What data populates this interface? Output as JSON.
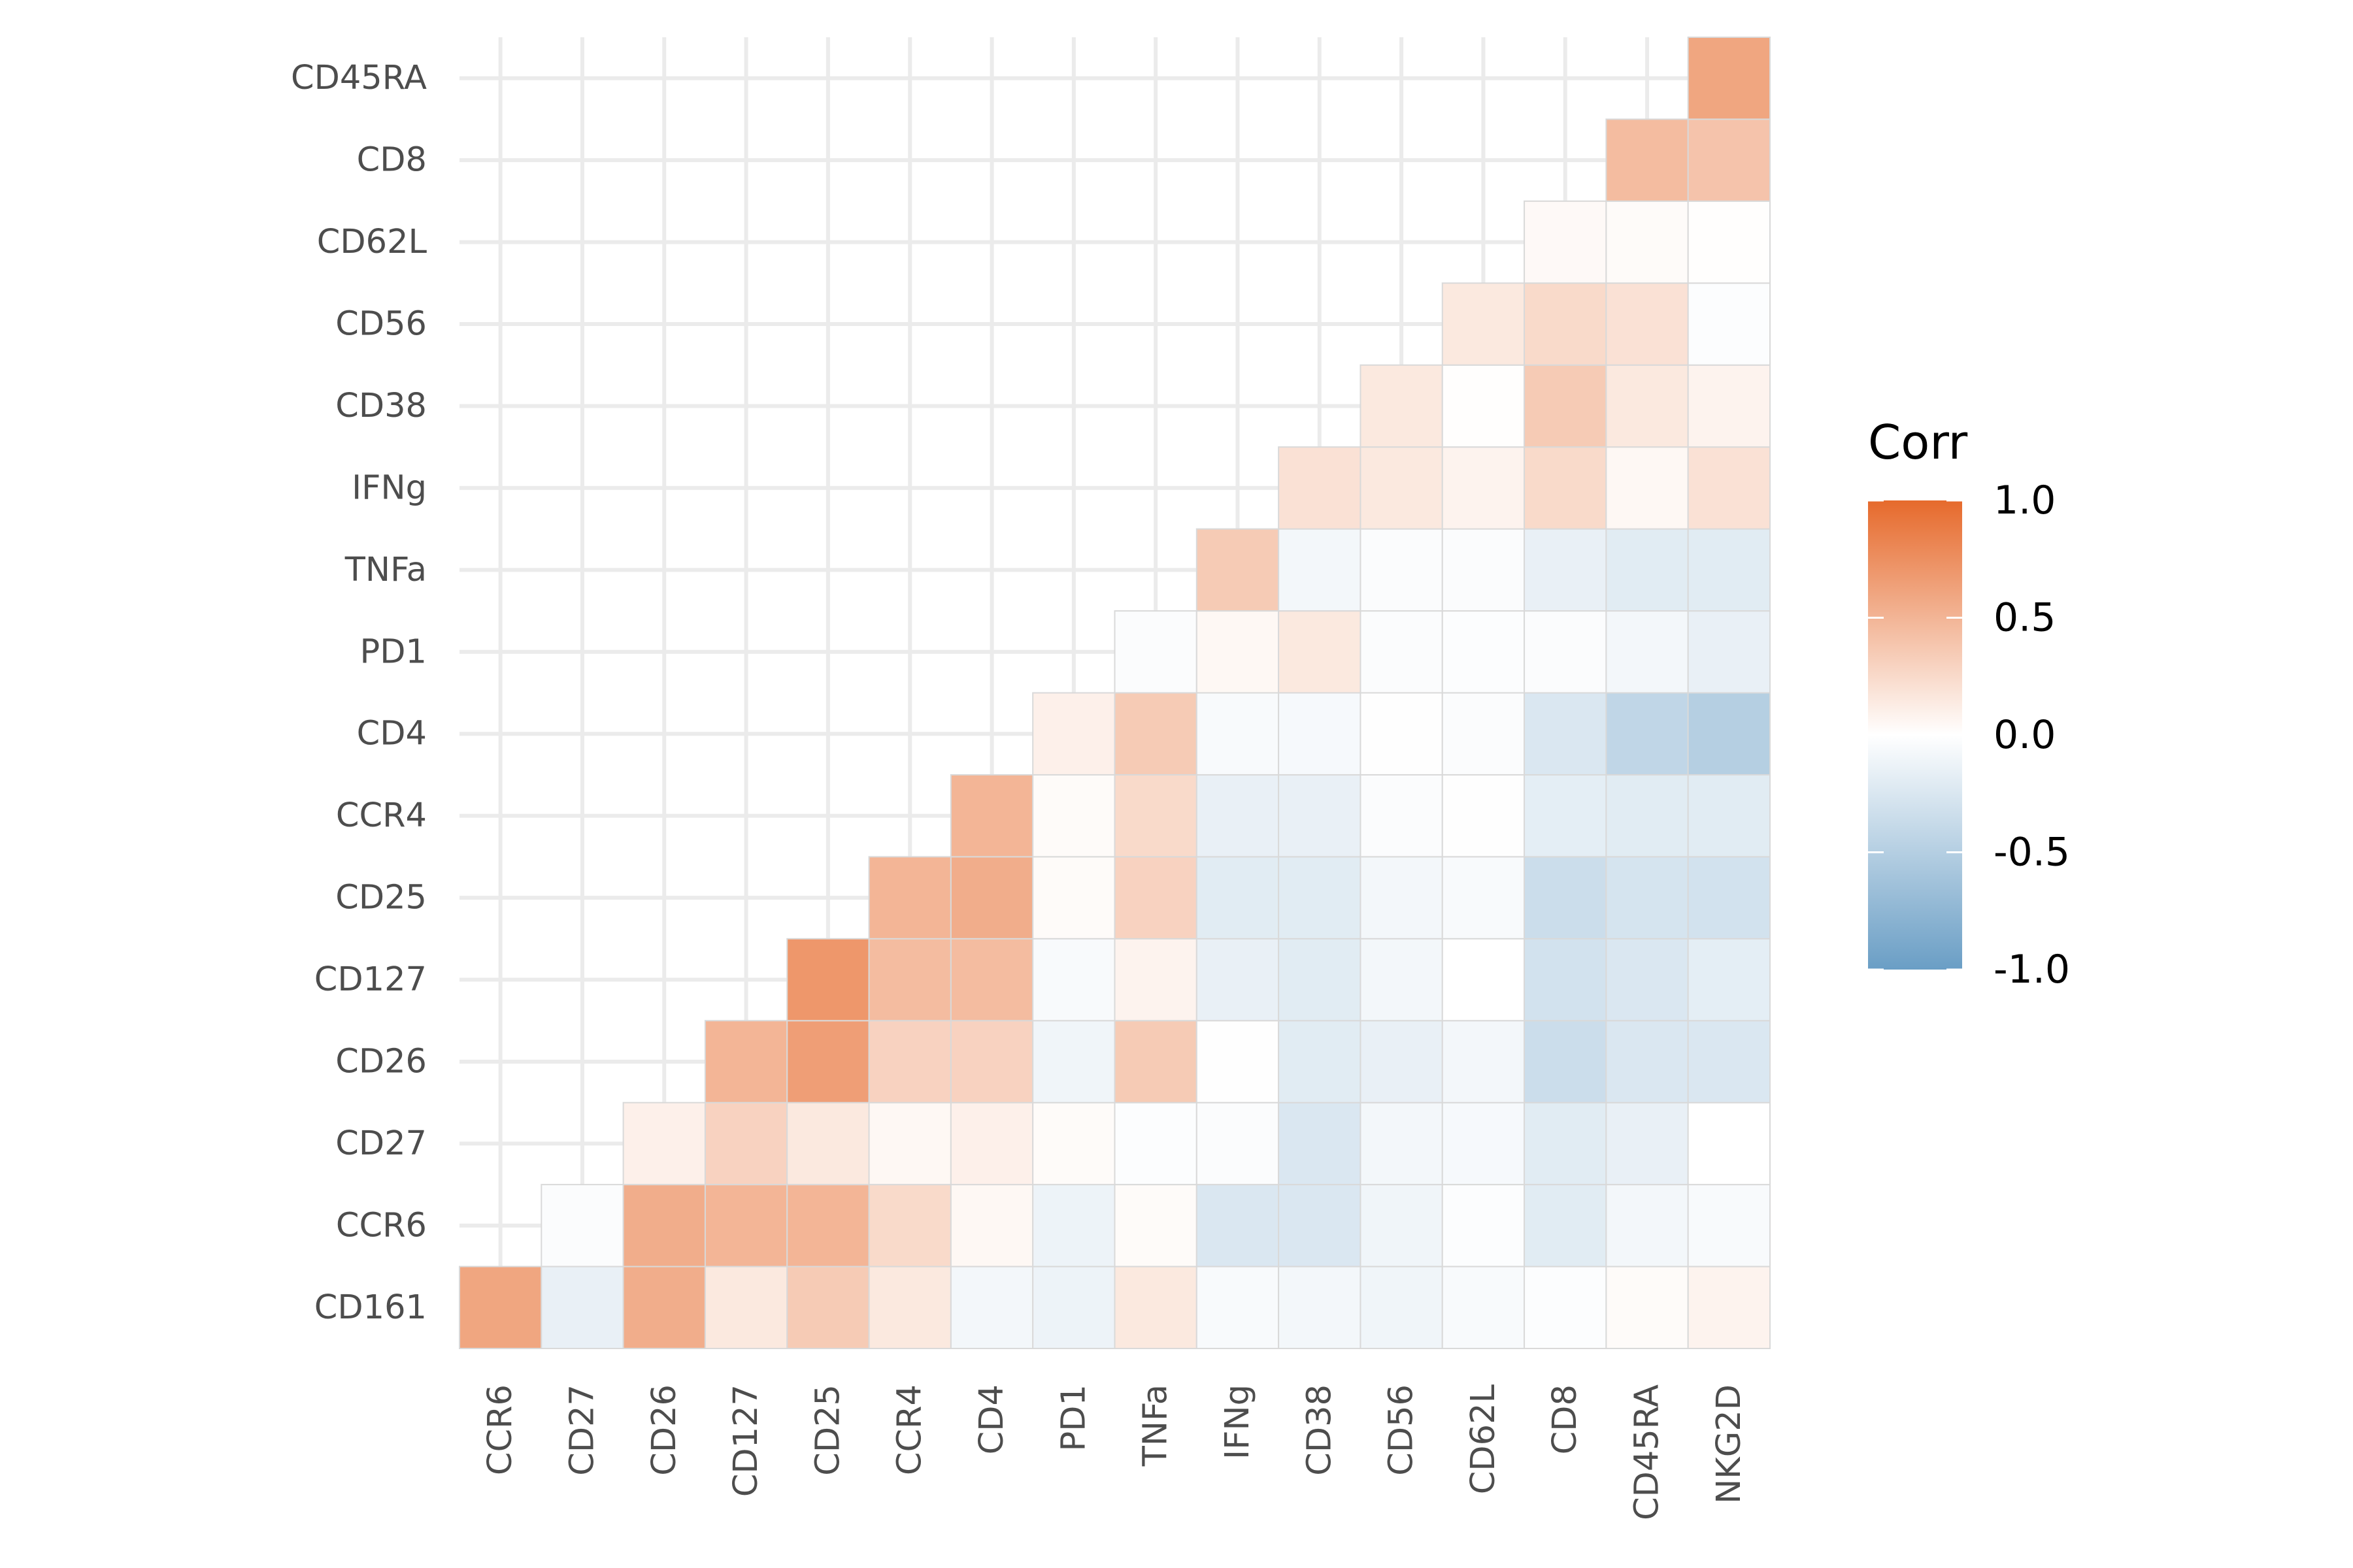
{
  "chart_data": {
    "type": "heatmap",
    "title": "",
    "xlabel": "",
    "ylabel": "",
    "x_categories": [
      "CCR6",
      "CD27",
      "CD26",
      "CD127",
      "CD25",
      "CCR4",
      "CD4",
      "PD1",
      "TNFa",
      "IFNg",
      "CD38",
      "CD56",
      "CD62L",
      "CD8",
      "CD45RA",
      "NKG2D"
    ],
    "y_categories": [
      "CD161",
      "CCR6",
      "CD27",
      "CD26",
      "CD127",
      "CD25",
      "CCR4",
      "CD4",
      "PD1",
      "TNFa",
      "IFNg",
      "CD38",
      "CD56",
      "CD62L",
      "CD8",
      "CD45RA"
    ],
    "lower_triangle": true,
    "grid": true,
    "values": [
      [
        0.6,
        -0.15,
        0.55,
        0.15,
        0.35,
        0.15,
        -0.08,
        -0.12,
        0.15,
        -0.05,
        -0.08,
        -0.1,
        -0.05,
        -0.02,
        0.03,
        0.08
      ],
      [
        -0.03,
        0.55,
        0.5,
        0.5,
        0.25,
        0.05,
        -0.12,
        0.03,
        -0.25,
        -0.25,
        -0.1,
        -0.02,
        -0.2,
        -0.08,
        -0.05
      ],
      [
        0.1,
        0.3,
        0.15,
        0.05,
        0.1,
        0.03,
        -0.02,
        -0.03,
        -0.25,
        -0.08,
        -0.06,
        -0.2,
        -0.15,
        0.0
      ],
      [
        0.5,
        0.65,
        0.3,
        0.3,
        -0.1,
        0.35,
        -0.01,
        -0.2,
        -0.15,
        -0.08,
        -0.35,
        -0.25,
        -0.25
      ],
      [
        0.7,
        0.45,
        0.45,
        -0.05,
        0.08,
        -0.15,
        -0.2,
        -0.08,
        0.0,
        -0.3,
        -0.25,
        -0.18
      ],
      [
        0.5,
        0.55,
        0.03,
        0.3,
        -0.2,
        -0.2,
        -0.08,
        -0.05,
        -0.35,
        -0.28,
        -0.3
      ],
      [
        0.5,
        0.03,
        0.25,
        -0.15,
        -0.15,
        -0.03,
        -0.01,
        -0.18,
        -0.2,
        -0.2
      ],
      [
        0.1,
        0.35,
        -0.05,
        -0.06,
        -0.01,
        -0.03,
        -0.25,
        -0.42,
        -0.5
      ],
      [
        -0.03,
        0.05,
        0.15,
        -0.03,
        -0.02,
        -0.03,
        -0.08,
        -0.15
      ],
      [
        0.35,
        -0.08,
        -0.03,
        -0.03,
        -0.15,
        -0.2,
        -0.2
      ],
      [
        0.2,
        0.15,
        0.08,
        0.25,
        0.05,
        0.2
      ],
      [
        0.15,
        0.01,
        0.35,
        0.15,
        0.08
      ],
      [
        0.15,
        0.25,
        0.2,
        -0.02
      ],
      [
        0.04,
        0.03,
        0.01
      ],
      [
        0.45,
        0.4
      ],
      [
        0.6
      ]
    ],
    "colorscale": {
      "low": "#6a9ec5",
      "mid": "#ffffff",
      "high": "#e66a2c",
      "min": -1.0,
      "max": 1.0
    },
    "legend": {
      "title": "Corr",
      "ticks": [
        "1.0",
        "0.5",
        "0.0",
        "-0.5",
        "-1.0"
      ],
      "position": "right"
    }
  }
}
